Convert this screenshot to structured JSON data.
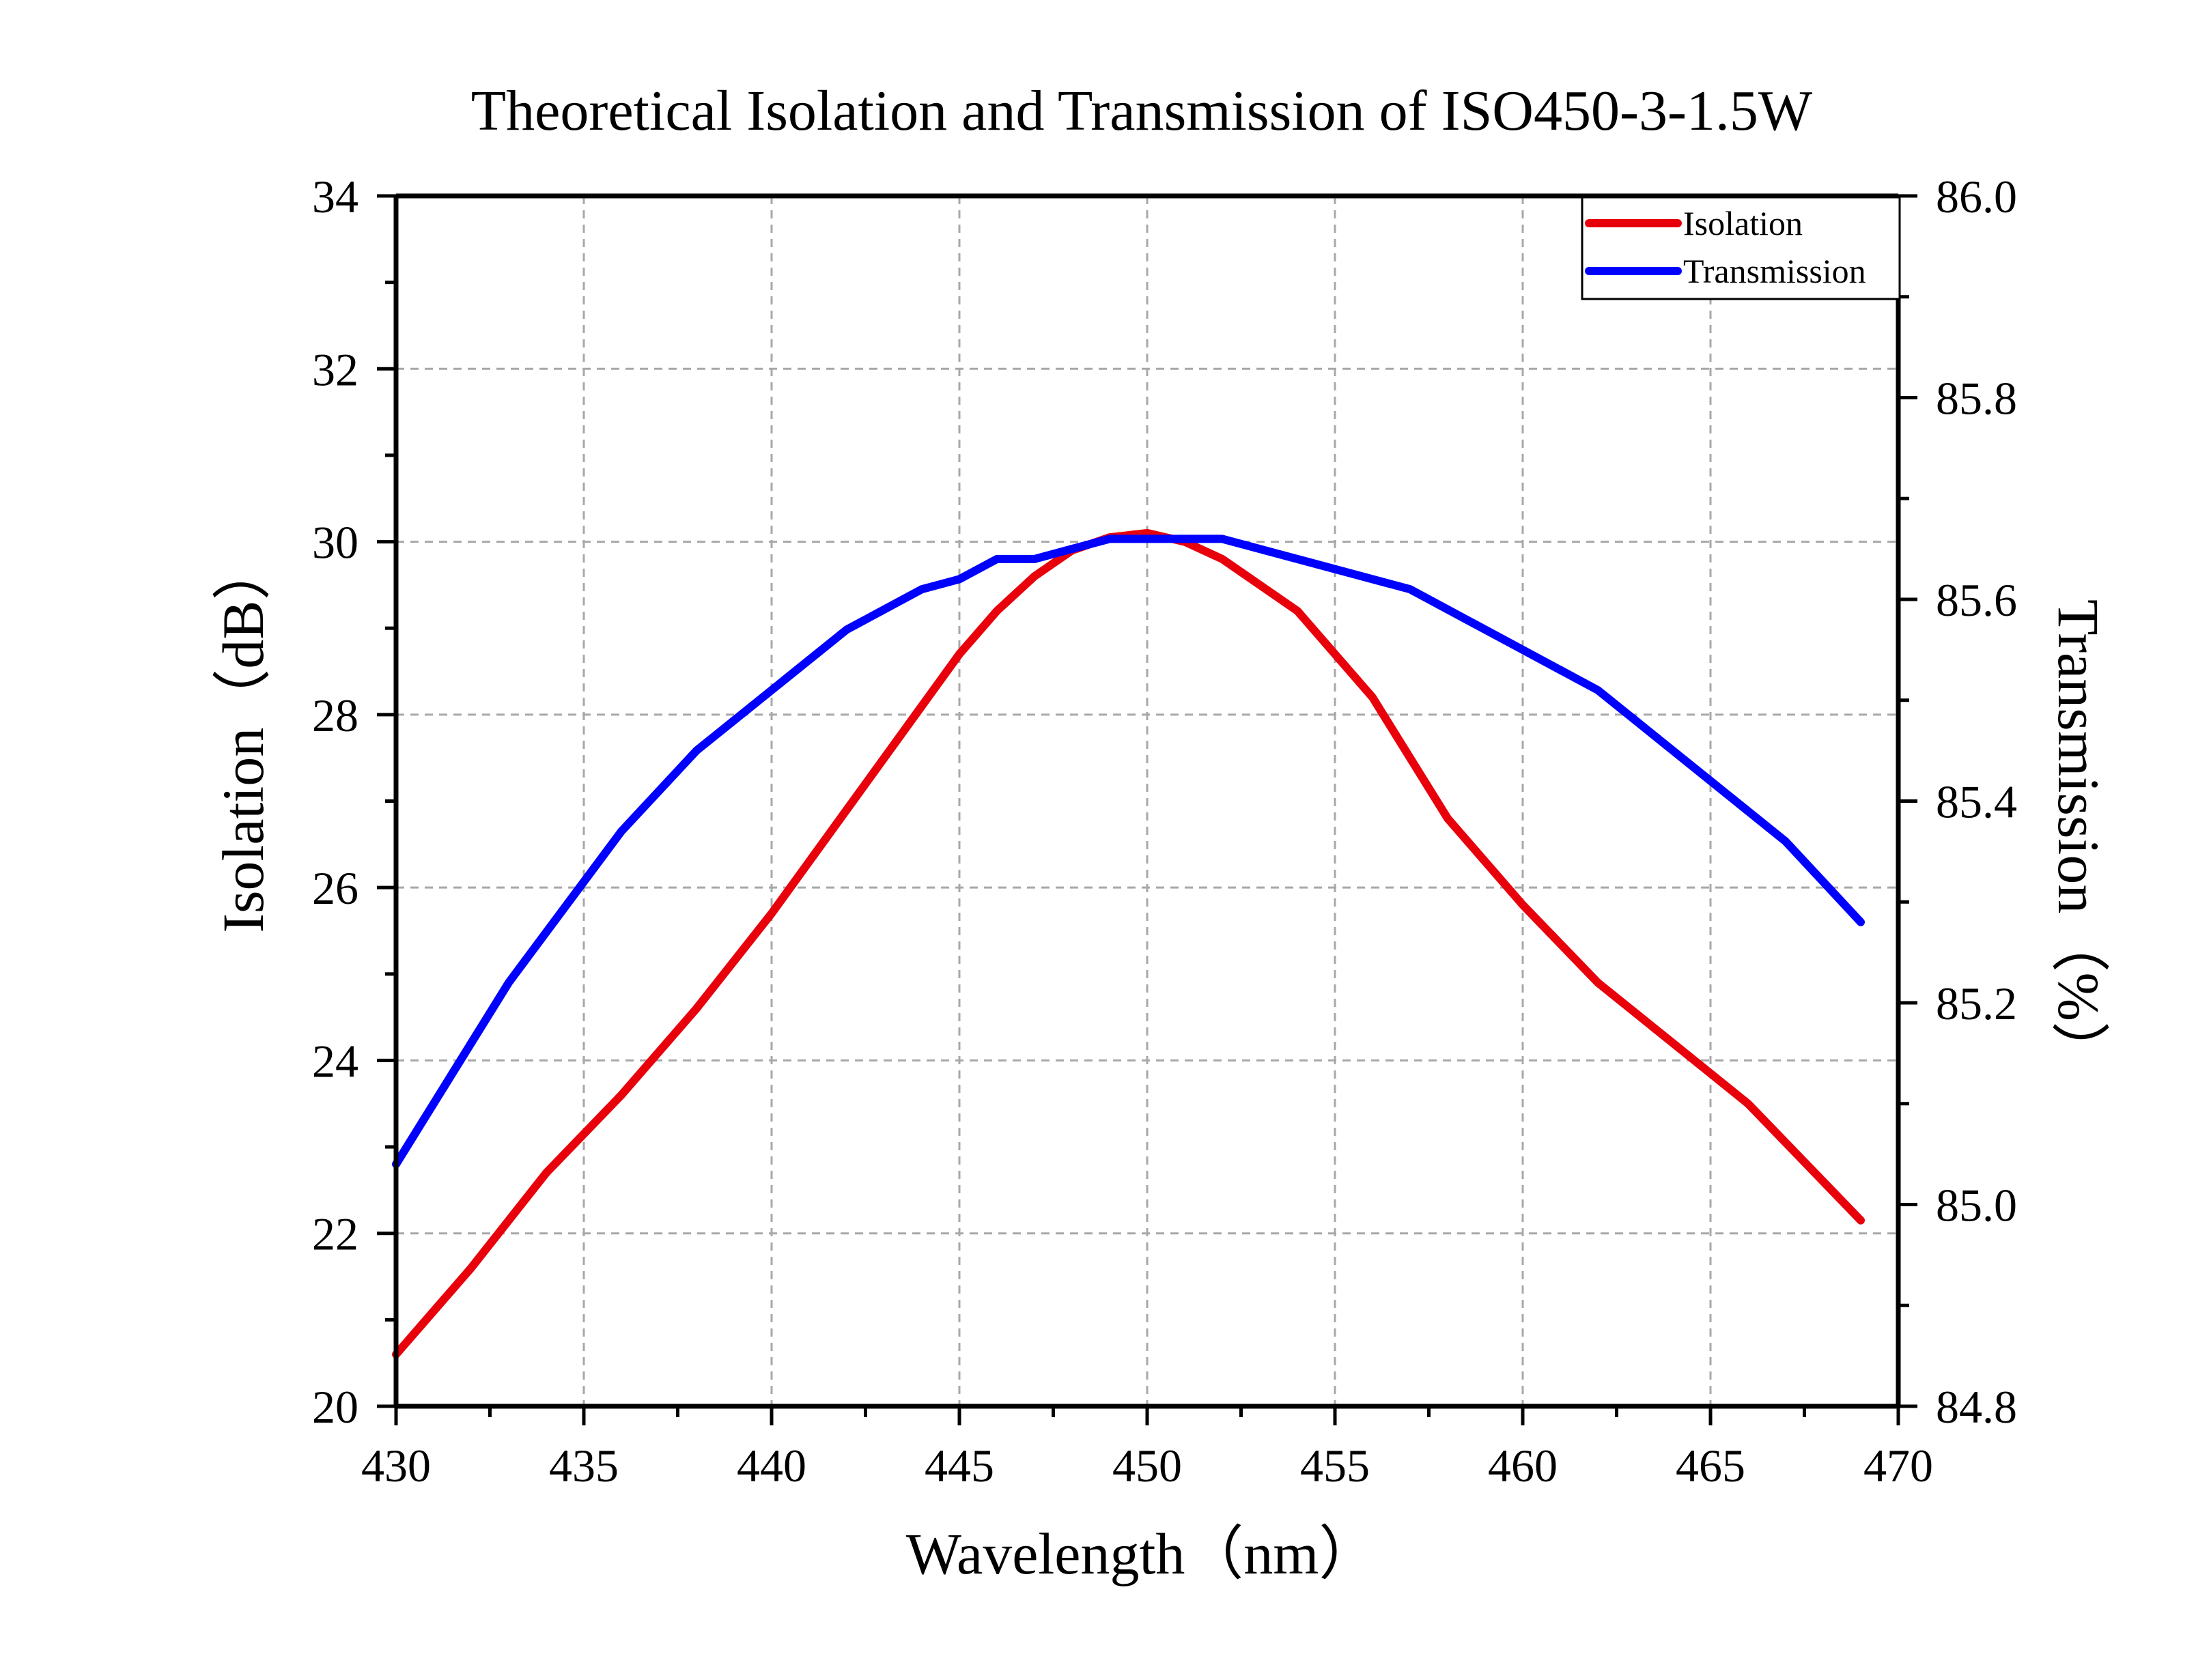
{
  "chart_data": {
    "type": "line",
    "title": "Theoretical Isolation and Transmission of ISO450-3-1.5W",
    "xlabel": "Wavelength（nm）",
    "ylabel": "Isolation（dB）",
    "y2label": "Transmission（%）",
    "xlim": [
      430,
      470
    ],
    "ylim": [
      20,
      34
    ],
    "y2lim": [
      84.8,
      86.0
    ],
    "xticks": [
      "430",
      "435",
      "440",
      "445",
      "450",
      "455",
      "460",
      "465",
      "470"
    ],
    "yticks": [
      "20",
      "22",
      "24",
      "26",
      "28",
      "30",
      "32",
      "34"
    ],
    "y2ticks": [
      "84.8",
      "85.0",
      "85.2",
      "85.4",
      "85.6",
      "85.8",
      "86.0"
    ],
    "grid": true,
    "legend_position": "top-right",
    "series": [
      {
        "name": "Isolation",
        "axis": "left",
        "color": "#e8000b",
        "x": [
          430,
          432,
          434,
          436,
          438,
          440,
          442,
          444,
          445,
          446,
          447,
          448,
          449,
          450,
          451,
          452,
          454,
          456,
          458,
          460,
          462,
          464,
          466,
          468,
          469
        ],
        "y": [
          20.6,
          21.6,
          22.7,
          23.6,
          24.6,
          25.7,
          26.9,
          28.1,
          28.7,
          29.2,
          29.6,
          29.9,
          30.05,
          30.1,
          30.0,
          29.8,
          29.2,
          28.2,
          26.8,
          25.8,
          24.9,
          24.2,
          23.5,
          22.6,
          22.15
        ]
      },
      {
        "name": "Transmission",
        "axis": "right",
        "color": "#0000ff",
        "x": [
          430,
          433,
          436,
          438,
          440,
          442,
          444,
          445,
          446,
          447,
          448,
          449,
          450,
          451,
          452,
          454,
          457,
          460,
          462,
          465,
          467,
          469
        ],
        "y": [
          85.04,
          85.22,
          85.37,
          85.45,
          85.51,
          85.57,
          85.61,
          85.62,
          85.64,
          85.64,
          85.65,
          85.66,
          85.66,
          85.66,
          85.66,
          85.64,
          85.61,
          85.55,
          85.51,
          85.42,
          85.36,
          85.28
        ]
      }
    ]
  }
}
